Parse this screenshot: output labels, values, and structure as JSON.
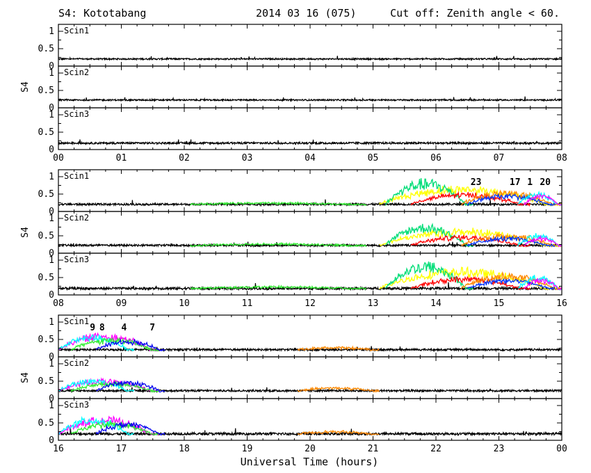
{
  "header": {
    "station": "S4: Kototabang",
    "date": "2014 03 16 (075)",
    "cutoff": "Cut off: Zenith angle < 60."
  },
  "chart_data": {
    "type": "line",
    "ylabel": "S4",
    "xlabel": "Universal Time (hours)",
    "ylim": [
      0,
      1.2
    ],
    "yticks": [
      "0",
      "0.5",
      "1"
    ],
    "series_colors": {
      "1": "#ff0000",
      "4": "#33ee33",
      "7": "#0000ee",
      "8": "#00ffff",
      "9": "#ff00ff",
      "17": "#ff8800",
      "20": "#aaff00",
      "23": "#00dd77",
      "yellow": "#ffff00",
      "black": "#000000",
      "purple": "#9900cc",
      "blue": "#0033ff"
    },
    "rows": [
      {
        "xticks": [
          "00",
          "01",
          "02",
          "03",
          "04",
          "05",
          "06",
          "07",
          "08"
        ],
        "xrange": [
          0,
          8
        ],
        "prn_labels": [],
        "panels": [
          {
            "label": "Scin1",
            "base": 0.2,
            "events": [
              {
                "series": "black",
                "t0": 0,
                "t1": 8,
                "amp": 0.03
              }
            ]
          },
          {
            "label": "Scin2",
            "base": 0.22,
            "events": [
              {
                "series": "black",
                "t0": 0,
                "t1": 8,
                "amp": 0.03
              }
            ]
          },
          {
            "label": "Scin3",
            "base": 0.18,
            "events": [
              {
                "series": "black",
                "t0": 0,
                "t1": 8,
                "amp": 0.04
              }
            ]
          }
        ]
      },
      {
        "xticks": [
          "08",
          "09",
          "10",
          "11",
          "12",
          "13",
          "14",
          "15",
          "16"
        ],
        "xrange": [
          8,
          16
        ],
        "prn_labels": [
          {
            "text": "23",
            "t": 14.55,
            "series": "23"
          },
          {
            "text": "17",
            "t": 15.17,
            "series": "17"
          },
          {
            "text": "1",
            "t": 15.45,
            "series": "1"
          },
          {
            "text": "20",
            "t": 15.65,
            "series": "20"
          }
        ],
        "panels": [
          {
            "label": "Scin1",
            "base": 0.2,
            "events": [
              {
                "series": "black",
                "t0": 8,
                "t1": 16,
                "amp": 0.04
              },
              {
                "series": "4",
                "t0": 10.1,
                "t1": 12.9,
                "amp": 0.05
              },
              {
                "series": "yellow",
                "t0": 13.1,
                "t1": 16,
                "amp": 0.55
              },
              {
                "series": "23",
                "t0": 13.2,
                "t1": 14.6,
                "amp": 0.75
              },
              {
                "series": "1",
                "t0": 13.6,
                "t1": 15.5,
                "amp": 0.35
              },
              {
                "series": "17",
                "t0": 14.4,
                "t1": 16,
                "amp": 0.4
              },
              {
                "series": "blue",
                "t0": 14.5,
                "t1": 15.9,
                "amp": 0.3
              },
              {
                "series": "8",
                "t0": 15.3,
                "t1": 16,
                "amp": 0.35
              },
              {
                "series": "9",
                "t0": 15.4,
                "t1": 16,
                "amp": 0.3
              }
            ]
          },
          {
            "label": "Scin2",
            "base": 0.22,
            "events": [
              {
                "series": "black",
                "t0": 8,
                "t1": 16,
                "amp": 0.04
              },
              {
                "series": "4",
                "t0": 10.1,
                "t1": 12.9,
                "amp": 0.05
              },
              {
                "series": "yellow",
                "t0": 13.1,
                "t1": 16,
                "amp": 0.5
              },
              {
                "series": "23",
                "t0": 13.2,
                "t1": 14.6,
                "amp": 0.65
              },
              {
                "series": "1",
                "t0": 13.6,
                "t1": 15.5,
                "amp": 0.3
              },
              {
                "series": "17",
                "t0": 14.4,
                "t1": 16,
                "amp": 0.35
              },
              {
                "series": "blue",
                "t0": 14.5,
                "t1": 15.9,
                "amp": 0.25
              },
              {
                "series": "8",
                "t0": 15.3,
                "t1": 16,
                "amp": 0.35
              },
              {
                "series": "9",
                "t0": 15.4,
                "t1": 16,
                "amp": 0.25
              }
            ]
          },
          {
            "label": "Scin3",
            "base": 0.18,
            "events": [
              {
                "series": "black",
                "t0": 8,
                "t1": 16,
                "amp": 0.05
              },
              {
                "series": "4",
                "t0": 10.1,
                "t1": 12.9,
                "amp": 0.06
              },
              {
                "series": "yellow",
                "t0": 13.1,
                "t1": 16,
                "amp": 0.6
              },
              {
                "series": "23",
                "t0": 13.2,
                "t1": 14.6,
                "amp": 0.8
              },
              {
                "series": "1",
                "t0": 13.6,
                "t1": 15.5,
                "amp": 0.35
              },
              {
                "series": "17",
                "t0": 14.4,
                "t1": 16,
                "amp": 0.45
              },
              {
                "series": "blue",
                "t0": 14.5,
                "t1": 15.9,
                "amp": 0.3
              },
              {
                "series": "8",
                "t0": 15.3,
                "t1": 16,
                "amp": 0.4
              },
              {
                "series": "9",
                "t0": 15.4,
                "t1": 16,
                "amp": 0.3
              }
            ]
          }
        ]
      },
      {
        "xticks": [
          "16",
          "17",
          "18",
          "19",
          "20",
          "21",
          "22",
          "23",
          "00"
        ],
        "xrange": [
          16,
          24
        ],
        "prn_labels": [
          {
            "text": "9",
            "t": 16.5,
            "series": "9"
          },
          {
            "text": "8",
            "t": 16.65,
            "series": "8"
          },
          {
            "text": "4",
            "t": 17.0,
            "series": "4"
          },
          {
            "text": "7",
            "t": 17.45,
            "series": "7"
          }
        ],
        "panels": [
          {
            "label": "Scin1",
            "base": 0.2,
            "events": [
              {
                "series": "black",
                "t0": 16,
                "t1": 24,
                "amp": 0.04
              },
              {
                "series": "9",
                "t0": 16,
                "t1": 17.6,
                "amp": 0.5
              },
              {
                "series": "8",
                "t0": 16,
                "t1": 17.2,
                "amp": 0.45
              },
              {
                "series": "4",
                "t0": 16.2,
                "t1": 17.6,
                "amp": 0.35
              },
              {
                "series": "7",
                "t0": 16.6,
                "t1": 17.7,
                "amp": 0.3
              },
              {
                "series": "17",
                "t0": 19.8,
                "t1": 21.1,
                "amp": 0.08
              }
            ]
          },
          {
            "label": "Scin2",
            "base": 0.22,
            "events": [
              {
                "series": "black",
                "t0": 16,
                "t1": 24,
                "amp": 0.04
              },
              {
                "series": "9",
                "t0": 16,
                "t1": 17.6,
                "amp": 0.35
              },
              {
                "series": "8",
                "t0": 16,
                "t1": 17.2,
                "amp": 0.35
              },
              {
                "series": "4",
                "t0": 16.2,
                "t1": 17.6,
                "amp": 0.25
              },
              {
                "series": "7",
                "t0": 16.6,
                "t1": 17.7,
                "amp": 0.3
              },
              {
                "series": "17",
                "t0": 19.8,
                "t1": 21.1,
                "amp": 0.1
              }
            ]
          },
          {
            "label": "Scin3",
            "base": 0.18,
            "events": [
              {
                "series": "black",
                "t0": 16,
                "t1": 24,
                "amp": 0.05
              },
              {
                "series": "9",
                "t0": 16,
                "t1": 17.6,
                "amp": 0.5
              },
              {
                "series": "8",
                "t0": 16,
                "t1": 17.2,
                "amp": 0.5
              },
              {
                "series": "4",
                "t0": 16.2,
                "t1": 17.6,
                "amp": 0.35
              },
              {
                "series": "7",
                "t0": 16.6,
                "t1": 17.7,
                "amp": 0.35
              },
              {
                "series": "17",
                "t0": 19.8,
                "t1": 21.1,
                "amp": 0.08
              }
            ]
          }
        ]
      }
    ]
  }
}
